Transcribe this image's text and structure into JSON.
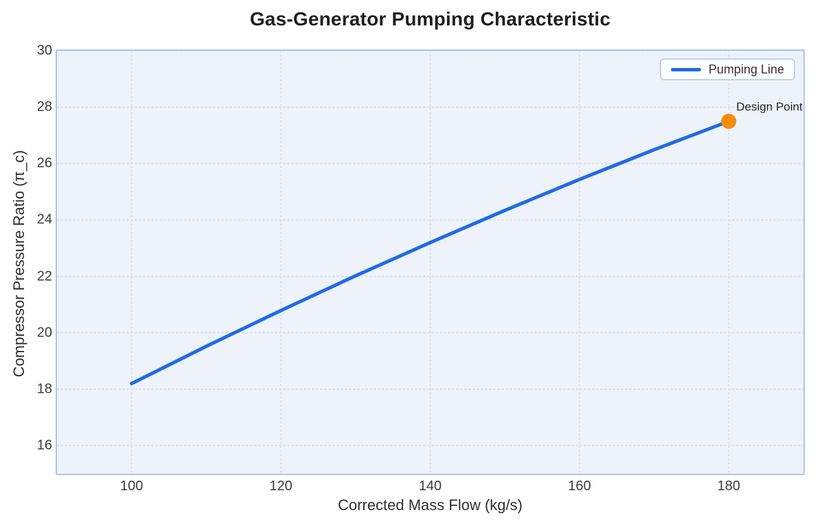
{
  "chart_data": {
    "type": "line",
    "title": "Gas-Generator Pumping Characteristic",
    "xlabel": "Corrected Mass Flow (kg/s)",
    "ylabel": "Compressor Pressure Ratio (π_c)",
    "xlim": [
      90,
      190
    ],
    "ylim": [
      15,
      30
    ],
    "xticks": [
      100,
      120,
      140,
      160,
      180
    ],
    "yticks": [
      16,
      18,
      20,
      22,
      24,
      26,
      28,
      30
    ],
    "grid": true,
    "legend": {
      "position": "top-right",
      "entries": [
        {
          "label": "Pumping Line",
          "color": "#1f6be6"
        }
      ]
    },
    "series": [
      {
        "name": "Pumping Line",
        "color": "#1f6be6",
        "line_width": 5,
        "x": [
          100,
          110,
          120,
          130,
          140,
          150,
          160,
          170,
          180
        ],
        "y": [
          18.2,
          19.52,
          20.79,
          22.02,
          23.2,
          24.34,
          25.44,
          26.49,
          27.5
        ]
      }
    ],
    "annotations": [
      {
        "label": "Design Point",
        "x": 180,
        "y": 27.5,
        "marker": "circle",
        "marker_color": "#f78c0a",
        "marker_radius": 11
      }
    ],
    "colors": {
      "plot_bg": "#eef2fb",
      "plot_border": "#a9c6f2",
      "gridline": "#d9e0f2",
      "title_text": "#1f1f1f",
      "tick_text": "#3b3b3b",
      "axis_label_text": "#2f2f2f",
      "line_blue": "#1f6be6",
      "marker_orange": "#f78c0a"
    }
  }
}
